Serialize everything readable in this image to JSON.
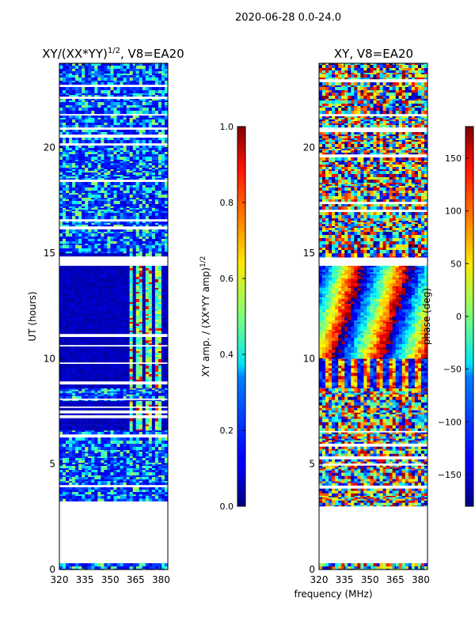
{
  "figure": {
    "suptitle": "2020-06-28 0.0-24.0",
    "shared_xlabel": "frequency (MHz)"
  },
  "chart_data": [
    {
      "type": "heatmap",
      "title_main": "XY/(XX*YY)",
      "title_exp": "1/2",
      "title_tail": ", V8=EA20",
      "xlabel": "",
      "ylabel": "UT (hours)",
      "xlim": [
        320,
        384
      ],
      "ylim": [
        0,
        24
      ],
      "xticks": [
        320,
        335,
        350,
        365,
        380
      ],
      "yticks": [
        0,
        5,
        10,
        15,
        20
      ],
      "colorbar": {
        "label_main": "XY amp. / (XX*YY amp)",
        "label_exp": "1/2",
        "range": [
          0.0,
          1.0
        ],
        "ticks": [
          "0.0",
          "0.2",
          "0.4",
          "0.6",
          "0.8",
          "1.0"
        ],
        "colormap": "jet"
      },
      "data_bands": [
        {
          "from": 0.0,
          "to": 0.3,
          "kind": "noise"
        },
        {
          "from": 3.0,
          "to": 3.5,
          "kind": "noise"
        },
        {
          "from": 3.5,
          "to": 6.6,
          "kind": "noise"
        },
        {
          "from": 6.6,
          "to": 8.0,
          "kind": "low_with_features"
        },
        {
          "from": 8.0,
          "to": 8.6,
          "kind": "noise"
        },
        {
          "from": 8.6,
          "to": 14.4,
          "kind": "low_with_features"
        },
        {
          "from": 14.8,
          "to": 15.0,
          "kind": "low_with_features"
        },
        {
          "from": 15.0,
          "to": 24.0,
          "kind": "noise"
        }
      ]
    },
    {
      "type": "heatmap",
      "title_main": "XY, V8=EA20",
      "xlabel": "frequency (MHz)",
      "ylabel": "",
      "xlim": [
        320,
        384
      ],
      "ylim": [
        0,
        24
      ],
      "xticks": [
        320,
        335,
        350,
        365,
        380
      ],
      "yticks": [
        0,
        5,
        10,
        15,
        20
      ],
      "colorbar": {
        "label": "phase (deg)",
        "range": [
          -180,
          180
        ],
        "ticks": [
          "−150",
          "−100",
          "−50",
          "0",
          "50",
          "100",
          "150"
        ],
        "tick_values": [
          -150,
          -100,
          -50,
          0,
          50,
          100,
          150
        ],
        "colormap": "jet"
      },
      "data_bands": [
        {
          "from": 0.0,
          "to": 0.3,
          "kind": "noise"
        },
        {
          "from": 3.0,
          "to": 3.5,
          "kind": "noise"
        },
        {
          "from": 3.5,
          "to": 8.6,
          "kind": "noise"
        },
        {
          "from": 8.6,
          "to": 10.0,
          "kind": "stripes"
        },
        {
          "from": 10.0,
          "to": 14.4,
          "kind": "phase_wrap"
        },
        {
          "from": 14.8,
          "to": 15.0,
          "kind": "stripes"
        },
        {
          "from": 15.0,
          "to": 24.0,
          "kind": "noise"
        }
      ]
    }
  ]
}
